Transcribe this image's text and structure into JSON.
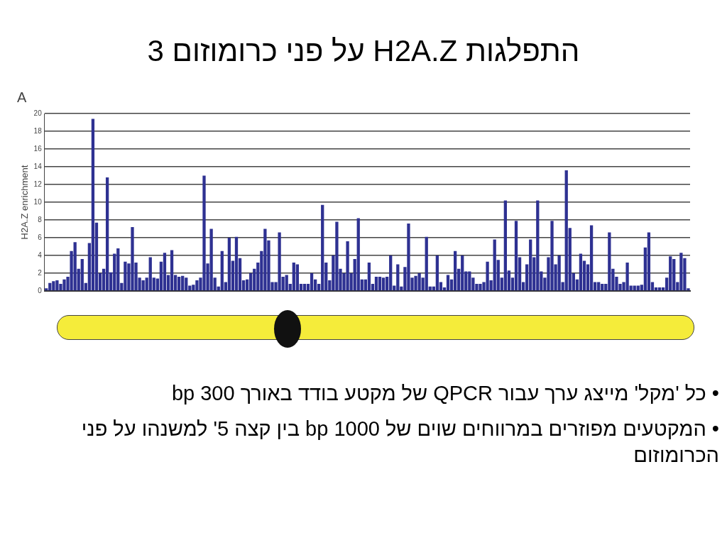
{
  "chart_data": {
    "type": "bar",
    "title": "התפלגות H2A.Z על פני כרומוזום 3",
    "ylabel": "H2A.Z enrichment",
    "annotations": [
      "A",
      "• כל 'מקל' מייצג ערך עבור QPCR של מקטע בודד באורך 300 bp",
      "• המקטעים מפוזרים במרווחים שוים של 1000 bp בין קצה 5' למשנהו על פני הכרומוזום"
    ],
    "categories": [
      null,
      null,
      null,
      null,
      null,
      null,
      null,
      null,
      null,
      null,
      null,
      null,
      null,
      null,
      null,
      null,
      null,
      null,
      null,
      null,
      null,
      null,
      null,
      null,
      null,
      null,
      null,
      null,
      null,
      null,
      null,
      null,
      null,
      null,
      null,
      null,
      null,
      null,
      null,
      null,
      null,
      null,
      null,
      null,
      null,
      null,
      null,
      null,
      null,
      null,
      null,
      null,
      null,
      null,
      null,
      null,
      null,
      null,
      null,
      null,
      null,
      null,
      null,
      null,
      null,
      null,
      null,
      null,
      null,
      null,
      null,
      null,
      null,
      null,
      null,
      null,
      null,
      null,
      null,
      null,
      null,
      null,
      null,
      null,
      null,
      null,
      null,
      null,
      null,
      null,
      null,
      null,
      null,
      null,
      null,
      null,
      null,
      null,
      null,
      null,
      null,
      null,
      null,
      null,
      null,
      null,
      null,
      null,
      null,
      null,
      null,
      null,
      null,
      null,
      null,
      null,
      null,
      null,
      null,
      null,
      null,
      null,
      null,
      null,
      null,
      null,
      null,
      null,
      null,
      null,
      null,
      null,
      null,
      null,
      null,
      null,
      null,
      null,
      null,
      null,
      null,
      null,
      null,
      null,
      null,
      null,
      null,
      null,
      null,
      null,
      null,
      null,
      null,
      null,
      null,
      null,
      null,
      null,
      null,
      null,
      null,
      null,
      null,
      null,
      null,
      null,
      null,
      null,
      null,
      null,
      null,
      null,
      null,
      null,
      null,
      null,
      null,
      null,
      null,
      null
    ],
    "values": [
      0.3,
      0.9,
      1.1,
      1.2,
      0.8,
      1.3,
      1.6,
      4.5,
      5.5,
      2.5,
      3.6,
      0.9,
      5.4,
      19.4,
      7.7,
      2.0,
      2.5,
      12.8,
      2.1,
      4.2,
      4.8,
      0.9,
      3.3,
      3.1,
      7.2,
      3.2,
      1.5,
      1.2,
      1.5,
      3.8,
      1.5,
      1.4,
      3.3,
      4.3,
      1.8,
      4.6,
      1.8,
      1.6,
      1.7,
      1.5,
      0.6,
      0.7,
      1.2,
      1.5,
      13.0,
      3.1,
      7.0,
      1.5,
      0.5,
      4.5,
      1.0,
      6.0,
      3.4,
      6.1,
      3.7,
      1.2,
      1.3,
      2.0,
      2.5,
      3.2,
      4.5,
      7.0,
      5.7,
      1.0,
      1.0,
      6.6,
      1.6,
      1.8,
      0.8,
      3.2,
      3.0,
      0.8,
      0.8,
      0.8,
      2.0,
      1.3,
      0.8,
      9.7,
      3.2,
      1.2,
      4.0,
      7.8,
      2.5,
      2.0,
      5.6,
      2.0,
      3.6,
      8.2,
      1.3,
      1.3,
      3.2,
      0.8,
      1.6,
      1.6,
      1.5,
      1.6,
      4.0,
      0.6,
      3.0,
      0.5,
      2.7,
      7.6,
      1.5,
      1.7,
      2.0,
      1.5,
      6.1,
      0.5,
      0.5,
      4.0,
      1.0,
      0.4,
      1.8,
      1.3,
      4.5,
      2.5,
      4.0,
      2.2,
      2.2,
      1.5,
      0.8,
      0.8,
      1.0,
      3.3,
      1.2,
      5.8,
      3.5,
      1.5,
      10.2,
      2.3,
      1.5,
      7.9,
      3.8,
      1.0,
      3.0,
      5.8,
      3.8,
      10.2,
      2.2,
      1.5,
      3.8,
      7.9,
      3.0,
      4.0,
      1.0,
      13.6,
      7.1,
      2.0,
      1.3,
      4.2,
      3.4,
      3.0,
      7.4,
      1.0,
      1.0,
      0.8,
      0.8,
      6.6,
      2.5,
      1.6,
      0.8,
      1.0,
      3.2,
      0.6,
      0.6,
      0.6,
      0.7,
      4.9,
      6.6,
      1.0,
      0.4,
      0.4,
      0.4,
      1.5,
      3.9,
      3.6,
      1.0,
      4.3,
      3.7,
      0.3
    ],
    "color": "#2e3192",
    "ylim": [
      0,
      20
    ],
    "yticks": [
      0,
      2,
      4,
      6,
      8,
      10,
      12,
      14,
      16,
      18,
      20
    ],
    "grid": "y",
    "tick_labels": "y"
  }
}
